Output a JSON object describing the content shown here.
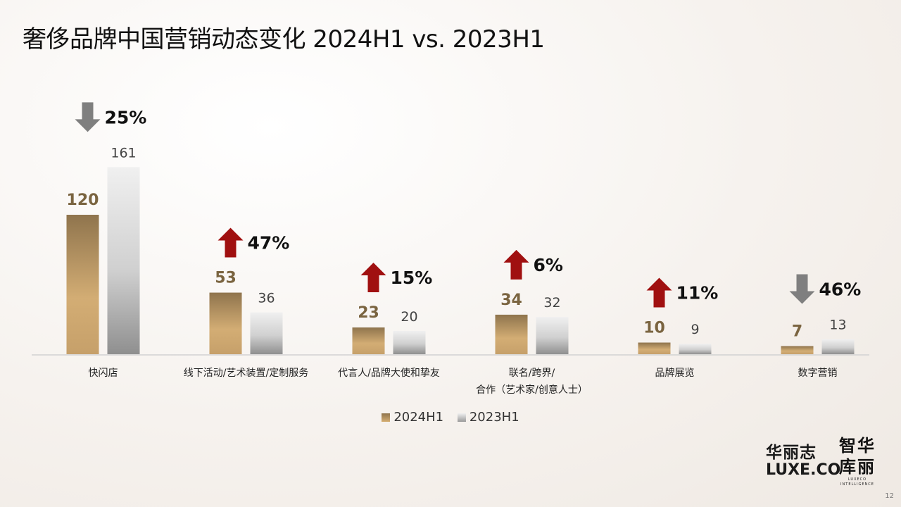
{
  "title": "奢侈品牌中国营销动态变化 2024H1 vs. 2023H1",
  "chart_data": {
    "type": "bar",
    "categories": [
      "快闪店",
      "线下活动/艺术装置/定制服务",
      "代言人/品牌大使和挚友",
      "联名/跨界/合作（艺术家/创意人士）",
      "品牌展览",
      "数字营销"
    ],
    "category_lines": [
      [
        "快闪店"
      ],
      [
        "线下活动/艺术装置/定制服务"
      ],
      [
        "代言人/品牌大使和挚友"
      ],
      [
        "联名/跨界/",
        "合作（艺术家/创意人士）"
      ],
      [
        "品牌展览"
      ],
      [
        "数字营销"
      ]
    ],
    "series": [
      {
        "name": "2024H1",
        "values": [
          120,
          53,
          23,
          34,
          10,
          7
        ],
        "color": "#b8975f"
      },
      {
        "name": "2023H1",
        "values": [
          161,
          36,
          20,
          32,
          9,
          13
        ],
        "color": "#c8c8c8"
      }
    ],
    "changes": [
      {
        "label": "25%",
        "direction": "down"
      },
      {
        "label": "47%",
        "direction": "up"
      },
      {
        "label": "15%",
        "direction": "up"
      },
      {
        "label": "6%",
        "direction": "up"
      },
      {
        "label": "11%",
        "direction": "up"
      },
      {
        "label": "46%",
        "direction": "down"
      }
    ],
    "ylim": [
      0,
      170
    ],
    "colors": {
      "up": "#a01010",
      "down": "#7f7f7f",
      "label_2024": "#7a6440",
      "label_2023": "#444444"
    }
  },
  "legend": {
    "item1": "2024H1",
    "item2": "2023H1"
  },
  "logo": {
    "left_line1": "华丽志",
    "left_line2": "LUXE.CO",
    "right_line1": "智华",
    "right_line2": "库丽",
    "right_sub": "LUXECO INTELLIGENCE"
  },
  "page_number": "12"
}
